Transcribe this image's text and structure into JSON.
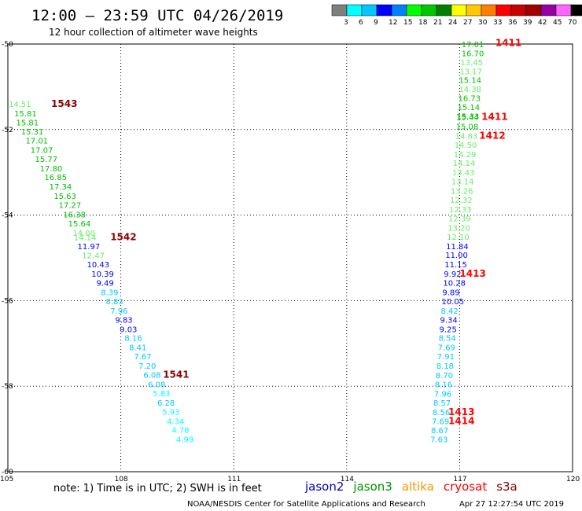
{
  "chart_data": {
    "type": "scatter",
    "title": "12:00 – 23:59 UTC 04/26/2019",
    "subtitle": "12 hour collection of altimeter wave heights",
    "xlim": [
      105,
      120
    ],
    "ylim": [
      -60,
      -50
    ],
    "x_ticks": [
      "105",
      "108",
      "111",
      "114",
      "117",
      "120"
    ],
    "y_ticks": [
      "-50",
      "-52",
      "-54",
      "-56",
      "-58",
      "-60"
    ],
    "grid": true,
    "colorbar": {
      "unit": "(ft)",
      "labels": [
        "3",
        "6",
        "9",
        "12",
        "15",
        "18",
        "21",
        "24",
        "27",
        "30",
        "33",
        "36",
        "39",
        "42",
        "45",
        "70"
      ],
      "colors": [
        "#7f7f7f",
        "#00ffff",
        "#00c8ff",
        "#0000ff",
        "#007fff",
        "#00ff00",
        "#00c800",
        "#008000",
        "#ffff00",
        "#ffc800",
        "#ff7f00",
        "#ff0000",
        "#c80000",
        "#a00000",
        "#9600a0",
        "#ff64ff",
        "#000000"
      ]
    },
    "series": [
      {
        "pass": "1543",
        "pass_at": [
          106.15,
          -51.4
        ],
        "pass_color": "#8b0000",
        "points": [
          {
            "x": 105.02,
            "y": -51.4,
            "v": "14.51"
          },
          {
            "x": 105.17,
            "y": -51.62,
            "v": "15.81"
          },
          {
            "x": 105.22,
            "y": -51.83,
            "v": "15.81"
          },
          {
            "x": 105.35,
            "y": -52.04,
            "v": "15.31"
          },
          {
            "x": 105.47,
            "y": -52.25,
            "v": "17.01"
          },
          {
            "x": 105.6,
            "y": -52.47,
            "v": "17.07"
          },
          {
            "x": 105.72,
            "y": -52.68,
            "v": "15.77"
          },
          {
            "x": 105.85,
            "y": -52.9,
            "v": "17.80"
          },
          {
            "x": 105.97,
            "y": -53.11,
            "v": "16.85"
          },
          {
            "x": 106.1,
            "y": -53.33,
            "v": "17.34"
          },
          {
            "x": 106.22,
            "y": -53.55,
            "v": "15.63"
          },
          {
            "x": 106.35,
            "y": -53.76,
            "v": "17.27"
          },
          {
            "x": 106.47,
            "y": -53.98,
            "v": "16.38"
          },
          {
            "x": 106.6,
            "y": -54.19,
            "v": "15.64"
          },
          {
            "x": 106.72,
            "y": -54.41,
            "v": "14.00"
          },
          {
            "x": 106.75,
            "y": -54.51,
            "v": "14.14"
          },
          {
            "x": 106.85,
            "y": -54.72,
            "v": "11.97"
          },
          {
            "x": 106.97,
            "y": -54.94,
            "v": "12.47"
          },
          {
            "x": 107.1,
            "y": -55.15,
            "v": "10.43"
          },
          {
            "x": 107.22,
            "y": -55.37,
            "v": "10.39"
          },
          {
            "x": 107.35,
            "y": -55.58,
            "v": "9.49"
          },
          {
            "x": 107.47,
            "y": -55.8,
            "v": "8.39"
          },
          {
            "x": 107.6,
            "y": -56.01,
            "v": "8.83"
          },
          {
            "x": 107.72,
            "y": -56.23,
            "v": "7.96"
          },
          {
            "x": 107.85,
            "y": -56.44,
            "v": "9.83"
          },
          {
            "x": 107.97,
            "y": -56.66,
            "v": "9.03"
          },
          {
            "x": 108.1,
            "y": -56.87,
            "v": "8.16"
          },
          {
            "x": 108.22,
            "y": -57.09,
            "v": "8.41"
          },
          {
            "x": 108.35,
            "y": -57.3,
            "v": "7.67"
          },
          {
            "x": 108.47,
            "y": -57.52,
            "v": "7.20"
          },
          {
            "x": 108.6,
            "y": -57.73,
            "v": "6.08"
          },
          {
            "x": 108.72,
            "y": -57.95,
            "v": "6.08"
          },
          {
            "x": 108.85,
            "y": -58.16,
            "v": "5.83"
          },
          {
            "x": 108.97,
            "y": -58.38,
            "v": "6.28"
          },
          {
            "x": 109.1,
            "y": -58.59,
            "v": "5.93"
          },
          {
            "x": 109.22,
            "y": -58.81,
            "v": "4.34"
          },
          {
            "x": 109.35,
            "y": -59.02,
            "v": "4.78"
          },
          {
            "x": 109.47,
            "y": -59.24,
            "v": "4.99"
          }
        ]
      },
      {
        "pass": "1542",
        "pass_at": [
          107.72,
          -54.51
        ],
        "pass_color": "#8b0000",
        "points": []
      },
      {
        "pass": "1541",
        "pass_at": [
          109.12,
          -57.73
        ],
        "pass_color": "#8b0000",
        "points": []
      },
      {
        "pass": "1411",
        "pass_at": [
          117.95,
          -49.97
        ],
        "pass_color": "#ff0000",
        "points": [
          {
            "x": 117.05,
            "y": -50.0,
            "v": "17.01"
          },
          {
            "x": 117.05,
            "y": -50.21,
            "v": "16.70"
          },
          {
            "x": 117.02,
            "y": -50.42,
            "v": "13.45"
          },
          {
            "x": 117.0,
            "y": -50.63,
            "v": "13.17"
          },
          {
            "x": 116.98,
            "y": -50.84,
            "v": "15.14"
          },
          {
            "x": 116.98,
            "y": -51.05,
            "v": "14.38"
          },
          {
            "x": 116.96,
            "y": -51.26,
            "v": "16.73"
          },
          {
            "x": 116.94,
            "y": -51.47,
            "v": "15.14"
          },
          {
            "x": 116.92,
            "y": -51.68,
            "v": "15.33"
          },
          {
            "x": 116.91,
            "y": -51.7,
            "v": "15.44"
          },
          {
            "x": 116.9,
            "y": -51.92,
            "v": "15.08"
          },
          {
            "x": 116.88,
            "y": -52.14,
            "v": "14.83"
          },
          {
            "x": 116.86,
            "y": -52.35,
            "v": "14.50"
          },
          {
            "x": 116.84,
            "y": -52.57,
            "v": "14.29"
          },
          {
            "x": 116.82,
            "y": -52.78,
            "v": "14.14"
          },
          {
            "x": 116.8,
            "y": -53.0,
            "v": "13.43"
          },
          {
            "x": 116.78,
            "y": -53.21,
            "v": "13.14"
          },
          {
            "x": 116.76,
            "y": -53.43,
            "v": "13.26"
          },
          {
            "x": 116.74,
            "y": -53.64,
            "v": "12.32"
          },
          {
            "x": 116.72,
            "y": -53.86,
            "v": "12.33"
          },
          {
            "x": 116.7,
            "y": -54.07,
            "v": "12.39"
          },
          {
            "x": 116.68,
            "y": -54.29,
            "v": "13.20"
          },
          {
            "x": 116.66,
            "y": -54.5,
            "v": "12.10"
          },
          {
            "x": 116.64,
            "y": -54.72,
            "v": "11.84"
          },
          {
            "x": 116.62,
            "y": -54.93,
            "v": "11.00"
          },
          {
            "x": 116.6,
            "y": -55.15,
            "v": "11.15"
          },
          {
            "x": 116.58,
            "y": -55.37,
            "v": "9.92"
          },
          {
            "x": 116.56,
            "y": -55.58,
            "v": "10.28"
          },
          {
            "x": 116.54,
            "y": -55.8,
            "v": "9.89"
          },
          {
            "x": 116.52,
            "y": -56.01,
            "v": "10.05"
          },
          {
            "x": 116.5,
            "y": -56.23,
            "v": "8.42"
          },
          {
            "x": 116.48,
            "y": -56.44,
            "v": "9.34"
          },
          {
            "x": 116.46,
            "y": -56.66,
            "v": "9.25"
          },
          {
            "x": 116.44,
            "y": -56.87,
            "v": "8.54"
          },
          {
            "x": 116.42,
            "y": -57.09,
            "v": "7.69"
          },
          {
            "x": 116.4,
            "y": -57.3,
            "v": "7.91"
          },
          {
            "x": 116.38,
            "y": -57.52,
            "v": "8.18"
          },
          {
            "x": 116.36,
            "y": -57.74,
            "v": "8.70"
          },
          {
            "x": 116.34,
            "y": -57.95,
            "v": "8.16"
          },
          {
            "x": 116.32,
            "y": -58.17,
            "v": "7.96"
          },
          {
            "x": 116.3,
            "y": -58.38,
            "v": "8.57"
          },
          {
            "x": 116.28,
            "y": -58.6,
            "v": "8.56"
          },
          {
            "x": 116.26,
            "y": -58.81,
            "v": "7.69"
          },
          {
            "x": 116.24,
            "y": -59.03,
            "v": "8.67"
          },
          {
            "x": 116.22,
            "y": -59.24,
            "v": "7.63"
          }
        ]
      },
      {
        "pass": "1411",
        "pass_at": [
          117.58,
          -51.7
        ],
        "pass_color": "#ff0000",
        "points": []
      },
      {
        "pass": "1412",
        "pass_at": [
          117.52,
          -52.14
        ],
        "pass_color": "#ff0000",
        "points": []
      },
      {
        "pass": "1413",
        "pass_at": [
          117.0,
          -55.37
        ],
        "pass_color": "#ff0000",
        "points": []
      },
      {
        "pass": "1413",
        "pass_at": [
          116.7,
          -58.6
        ],
        "pass_color": "#ff0000",
        "points": []
      },
      {
        "pass": "1414",
        "pass_at": [
          116.7,
          -58.81
        ],
        "pass_color": "#ff0000",
        "points": []
      }
    ]
  },
  "footer": {
    "note": "note:  1) Time is in UTC;  2) SWH is in feet",
    "satellites": [
      {
        "name": "jason2",
        "color": "#0000c8"
      },
      {
        "name": "jason3",
        "color": "#009600"
      },
      {
        "name": "altika",
        "color": "#ff9600"
      },
      {
        "name": "cryosat",
        "color": "#ff0000"
      },
      {
        "name": "s3a",
        "color": "#8b0000"
      }
    ],
    "credit": "NOAA/NESDIS Center for Satellite Applications and Research",
    "timestamp": "Apr 27 12:27:54 UTC 2019"
  }
}
